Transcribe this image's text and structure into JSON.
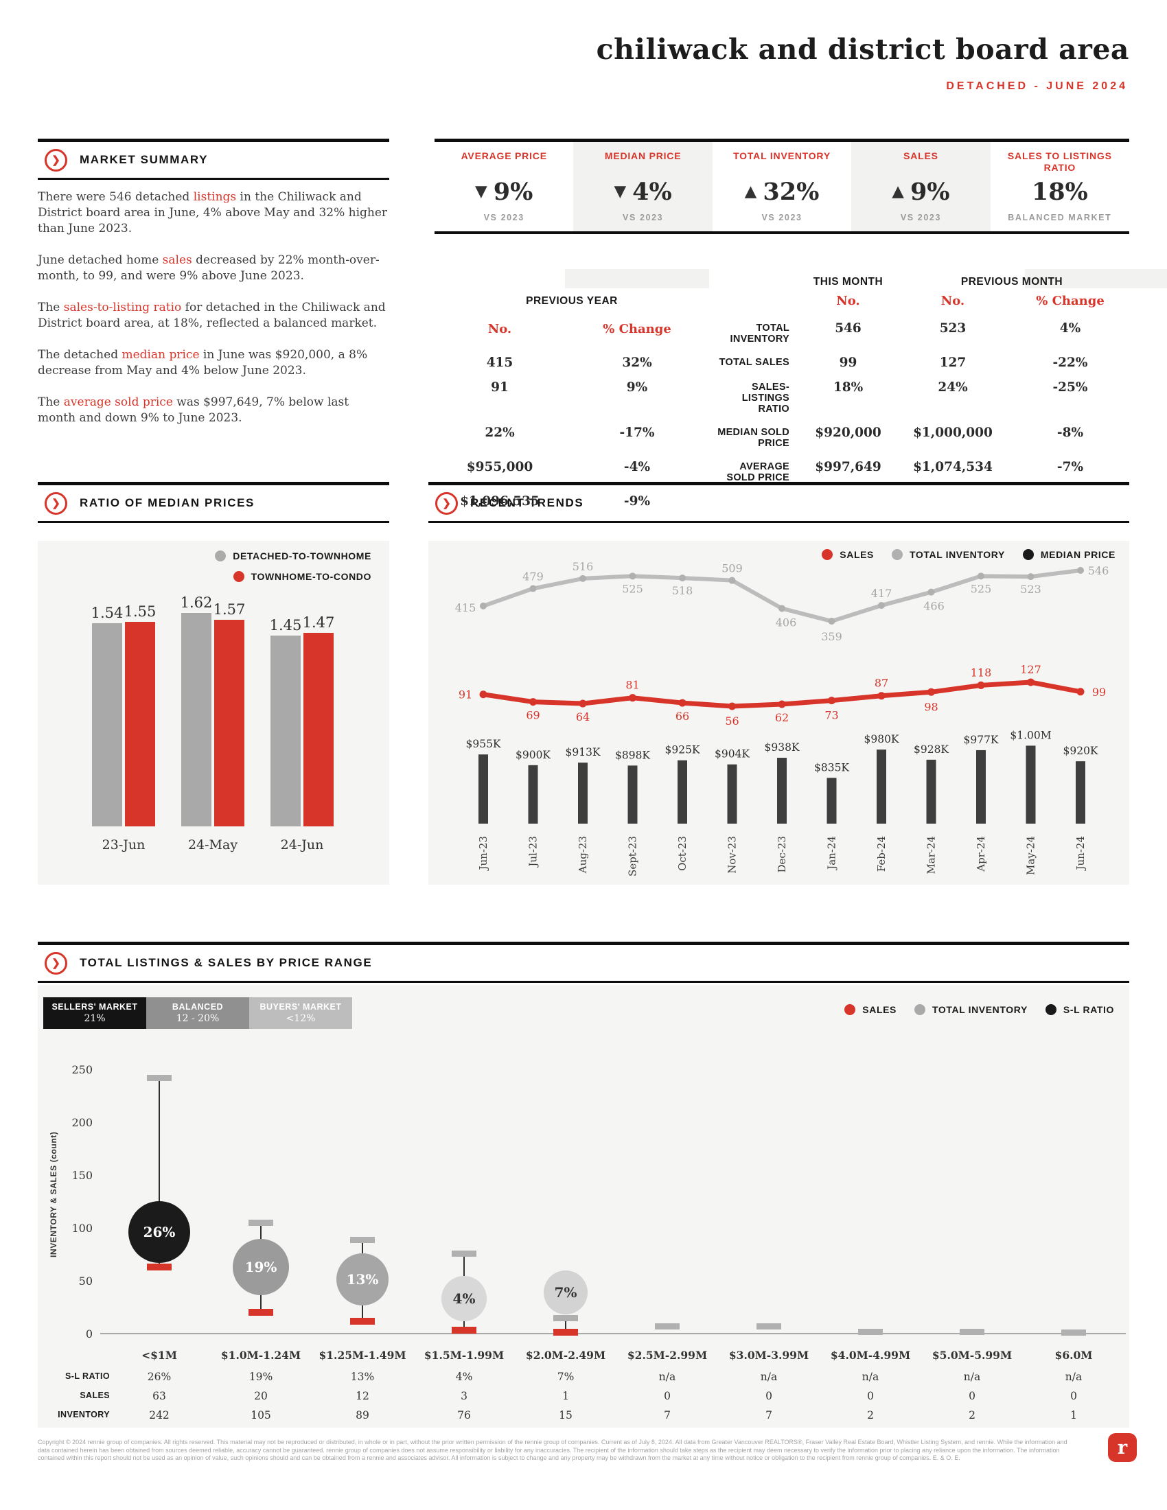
{
  "page": {
    "title": "chiliwack and district board area",
    "subtitle": "DETACHED - JUNE 2024"
  },
  "market_summary": {
    "heading": "MARKET SUMMARY",
    "paragraphs": [
      [
        {
          "t": "There were 546 detached "
        },
        {
          "t": "listings",
          "red": true
        },
        {
          "t": " in the Chiliwack and District board area in June, 4% above May and 32% higher than June 2023."
        }
      ],
      [
        {
          "t": "June detached home "
        },
        {
          "t": "sales",
          "red": true
        },
        {
          "t": " decreased by 22% month-over-month, to 99, and were 9% above June 2023."
        }
      ],
      [
        {
          "t": "The "
        },
        {
          "t": "sales-to-listing ratio",
          "red": true
        },
        {
          "t": " for detached in the Chiliwack and District board area, at 18%, reflected a balanced market."
        }
      ],
      [
        {
          "t": "The detached "
        },
        {
          "t": "median price",
          "red": true
        },
        {
          "t": " in June was $920,000, a 8% decrease from May and 4% below June 2023."
        }
      ],
      [
        {
          "t": "The "
        },
        {
          "t": "average sold price",
          "red": true
        },
        {
          "t": " was $997,649, 7% below last month and down 9% to June 2023."
        }
      ]
    ]
  },
  "stat_boxes": [
    {
      "label": "AVERAGE PRICE",
      "arrow": "down",
      "value": "9%",
      "sub": "VS 2023",
      "shaded": false
    },
    {
      "label": "MEDIAN PRICE",
      "arrow": "down",
      "value": "4%",
      "sub": "VS 2023",
      "shaded": true
    },
    {
      "label": "TOTAL INVENTORY",
      "arrow": "up",
      "value": "32%",
      "sub": "VS 2023",
      "shaded": false
    },
    {
      "label": "SALES",
      "arrow": "up",
      "value": "9%",
      "sub": "VS 2023",
      "shaded": true
    },
    {
      "label": "SALES TO LISTINGS RATIO",
      "arrow": null,
      "value": "18%",
      "sub": "BALANCED MARKET",
      "shaded": false
    }
  ],
  "summary_table": {
    "group_headers": [
      "THIS MONTH",
      "PREVIOUS MONTH",
      "PREVIOUS YEAR"
    ],
    "sub_headers": [
      "No.",
      "No.",
      "% Change",
      "No.",
      "% Change"
    ],
    "rows": [
      {
        "label": "TOTAL INVENTORY",
        "values": [
          "546",
          "523",
          "4%",
          "415",
          "32%"
        ]
      },
      {
        "label": "TOTAL SALES",
        "values": [
          "99",
          "127",
          "-22%",
          "91",
          "9%"
        ]
      },
      {
        "label": "SALES-LISTINGS RATIO",
        "values": [
          "18%",
          "24%",
          "-25%",
          "22%",
          "-17%"
        ]
      },
      {
        "label": "MEDIAN SOLD PRICE",
        "values": [
          "$920,000",
          "$1,000,000",
          "-8%",
          "$955,000",
          "-4%"
        ]
      },
      {
        "label": "AVERAGE SOLD PRICE",
        "values": [
          "$997,649",
          "$1,074,534",
          "-7%",
          "$1,096,535",
          "-9%"
        ]
      }
    ]
  },
  "ratio_legend": [
    {
      "label": "DETACHED-TO-TOWNHOME",
      "color": "#ababab"
    },
    {
      "label": "TOWNHOME-TO-CONDO",
      "color": "#d8352a"
    }
  ],
  "trends_legend": [
    {
      "label": "SALES",
      "color": "#d8352a"
    },
    {
      "label": "TOTAL INVENTORY",
      "color": "#b0b0b0"
    },
    {
      "label": "MEDIAN PRICE",
      "color": "#1a1a1a"
    }
  ],
  "chart_data": [
    {
      "type": "bar",
      "title": "RATIO OF MEDIAN PRICES",
      "categories": [
        "23-Jun",
        "24-May",
        "24-Jun"
      ],
      "series": [
        {
          "name": "DETACHED-TO-TOWNHOME",
          "color": "#a9a9a9",
          "values": [
            1.54,
            1.62,
            1.45
          ]
        },
        {
          "name": "TOWNHOME-TO-CONDO",
          "color": "#d8352a",
          "values": [
            1.55,
            1.57,
            1.47
          ]
        }
      ],
      "value_labels": [
        [
          "1.54",
          "1.62",
          "1.45"
        ],
        [
          "1.55",
          "1.57",
          "1.47"
        ]
      ],
      "ylim": [
        0,
        1.75
      ],
      "grid": false,
      "legend_position": "top-right"
    },
    {
      "type": "line",
      "title": "RECENT TRENDS",
      "x": [
        "Jun-23",
        "Jul-23",
        "Aug-23",
        "Sept-23",
        "Oct-23",
        "Nov-23",
        "Dec-23",
        "Jan-24",
        "Feb-24",
        "Mar-24",
        "Apr-24",
        "May-24",
        "Jun-24"
      ],
      "series": [
        {
          "name": "SALES",
          "type": "line",
          "color": "#d8352a",
          "values": [
            91,
            69,
            64,
            81,
            66,
            56,
            62,
            73,
            87,
            98,
            118,
            127,
            99
          ]
        },
        {
          "name": "TOTAL INVENTORY",
          "type": "line",
          "color": "#bcbcbc",
          "values": [
            415,
            479,
            516,
            525,
            518,
            509,
            406,
            359,
            417,
            466,
            525,
            523,
            546
          ]
        },
        {
          "name": "MEDIAN PRICE",
          "type": "bar",
          "color": "#3e3e3e",
          "values_thousands": [
            955,
            900,
            913,
            898,
            925,
            904,
            938,
            835,
            980,
            928,
            977,
            1000,
            920
          ],
          "labels": [
            "$955K",
            "$900K",
            "$913K",
            "$898K",
            "$925K",
            "$904K",
            "$938K",
            "$835K",
            "$980K",
            "$928K",
            "$977K",
            "$1.00M",
            "$920K"
          ]
        }
      ],
      "grid": false,
      "legend_position": "top-right"
    },
    {
      "type": "bubble-range",
      "title": "TOTAL LISTINGS & SALES BY PRICE RANGE",
      "ylabel": "INVENTORY & SALES (count)",
      "yticks": [
        0,
        50,
        100,
        150,
        200,
        250
      ],
      "ylim": [
        0,
        260
      ],
      "categories": [
        "<$1M",
        "$1.0M-1.24M",
        "$1.25M-1.49M",
        "$1.5M-1.99M",
        "$2.0M-2.49M",
        "$2.5M-2.99M",
        "$3.0M-3.99M",
        "$4.0M-4.99M",
        "$5.0M-5.99M",
        "$6.0M"
      ],
      "sl_ratio": [
        "26%",
        "19%",
        "13%",
        "4%",
        "7%",
        "n/a",
        "n/a",
        "n/a",
        "n/a",
        "n/a"
      ],
      "sales": [
        63,
        20,
        12,
        3,
        1,
        0,
        0,
        0,
        0,
        0
      ],
      "inventory": [
        242,
        105,
        89,
        76,
        15,
        7,
        7,
        2,
        2,
        1
      ],
      "row_labels": [
        "S-L RATIO",
        "SALES",
        "INVENTORY"
      ],
      "market_chips": [
        {
          "label": "SELLERS' MARKET",
          "range": "21%",
          "color": "#141414",
          "text": "#ffffff"
        },
        {
          "label": "BALANCED",
          "range": "12 - 20%",
          "color": "#909090",
          "text": "#ffffff"
        },
        {
          "label": "BUYERS' MARKET",
          "range": "<12%",
          "color": "#bdbdbd",
          "text": "#ffffff"
        }
      ],
      "legend": [
        {
          "label": "SALES",
          "color": "#d8352a"
        },
        {
          "label": "TOTAL INVENTORY",
          "color": "#a9a9a9"
        },
        {
          "label": "S-L RATIO",
          "color": "#1a1a1a"
        }
      ],
      "bubbles": [
        {
          "value": "26%",
          "fill": "#1b1b1b",
          "text_color": "#ffffff",
          "center": 96,
          "radius": 45
        },
        {
          "value": "19%",
          "fill": "#9b9b9b",
          "text_color": "#ffffff",
          "center": 63,
          "radius": 41
        },
        {
          "value": "13%",
          "fill": "#a6a6a6",
          "text_color": "#ffffff",
          "center": 51,
          "radius": 38
        },
        {
          "value": "4%",
          "fill": "#d8d8d8",
          "text_color": "#333333",
          "center": 33,
          "radius": 33
        },
        {
          "value": "7%",
          "fill": "#d3d3d3",
          "text_color": "#333333",
          "center": 39,
          "radius": 32
        }
      ]
    }
  ],
  "footer": {
    "text": "Copyright © 2024 rennie group of companies. All rights reserved. This material may not be reproduced or distributed, in whole or in part, without the prior written permission of the rennie group of companies. Current as of July 8, 2024. All data from Greater Vancouver REALTORS®, Fraser Valley Real Estate Board, Whistler Listing System, and rennie. While the information and data contained herein has been obtained from sources deemed reliable, accuracy cannot be guaranteed. rennie group of companies does not assume responsibility or liability for any inaccuracies. The recipient of the information should take steps as the recipient may deem necessary to verify the information prior to placing any reliance upon the information. The information contained within this report should not be used as an opinion of value, such opinions should and can be obtained from a rennie and associates advisor. All information is subject to change and any property may be withdrawn from the market at any time without notice or obligation to the recipient from rennie group of companies. E. & O. E.",
    "logo_letter": "r"
  }
}
